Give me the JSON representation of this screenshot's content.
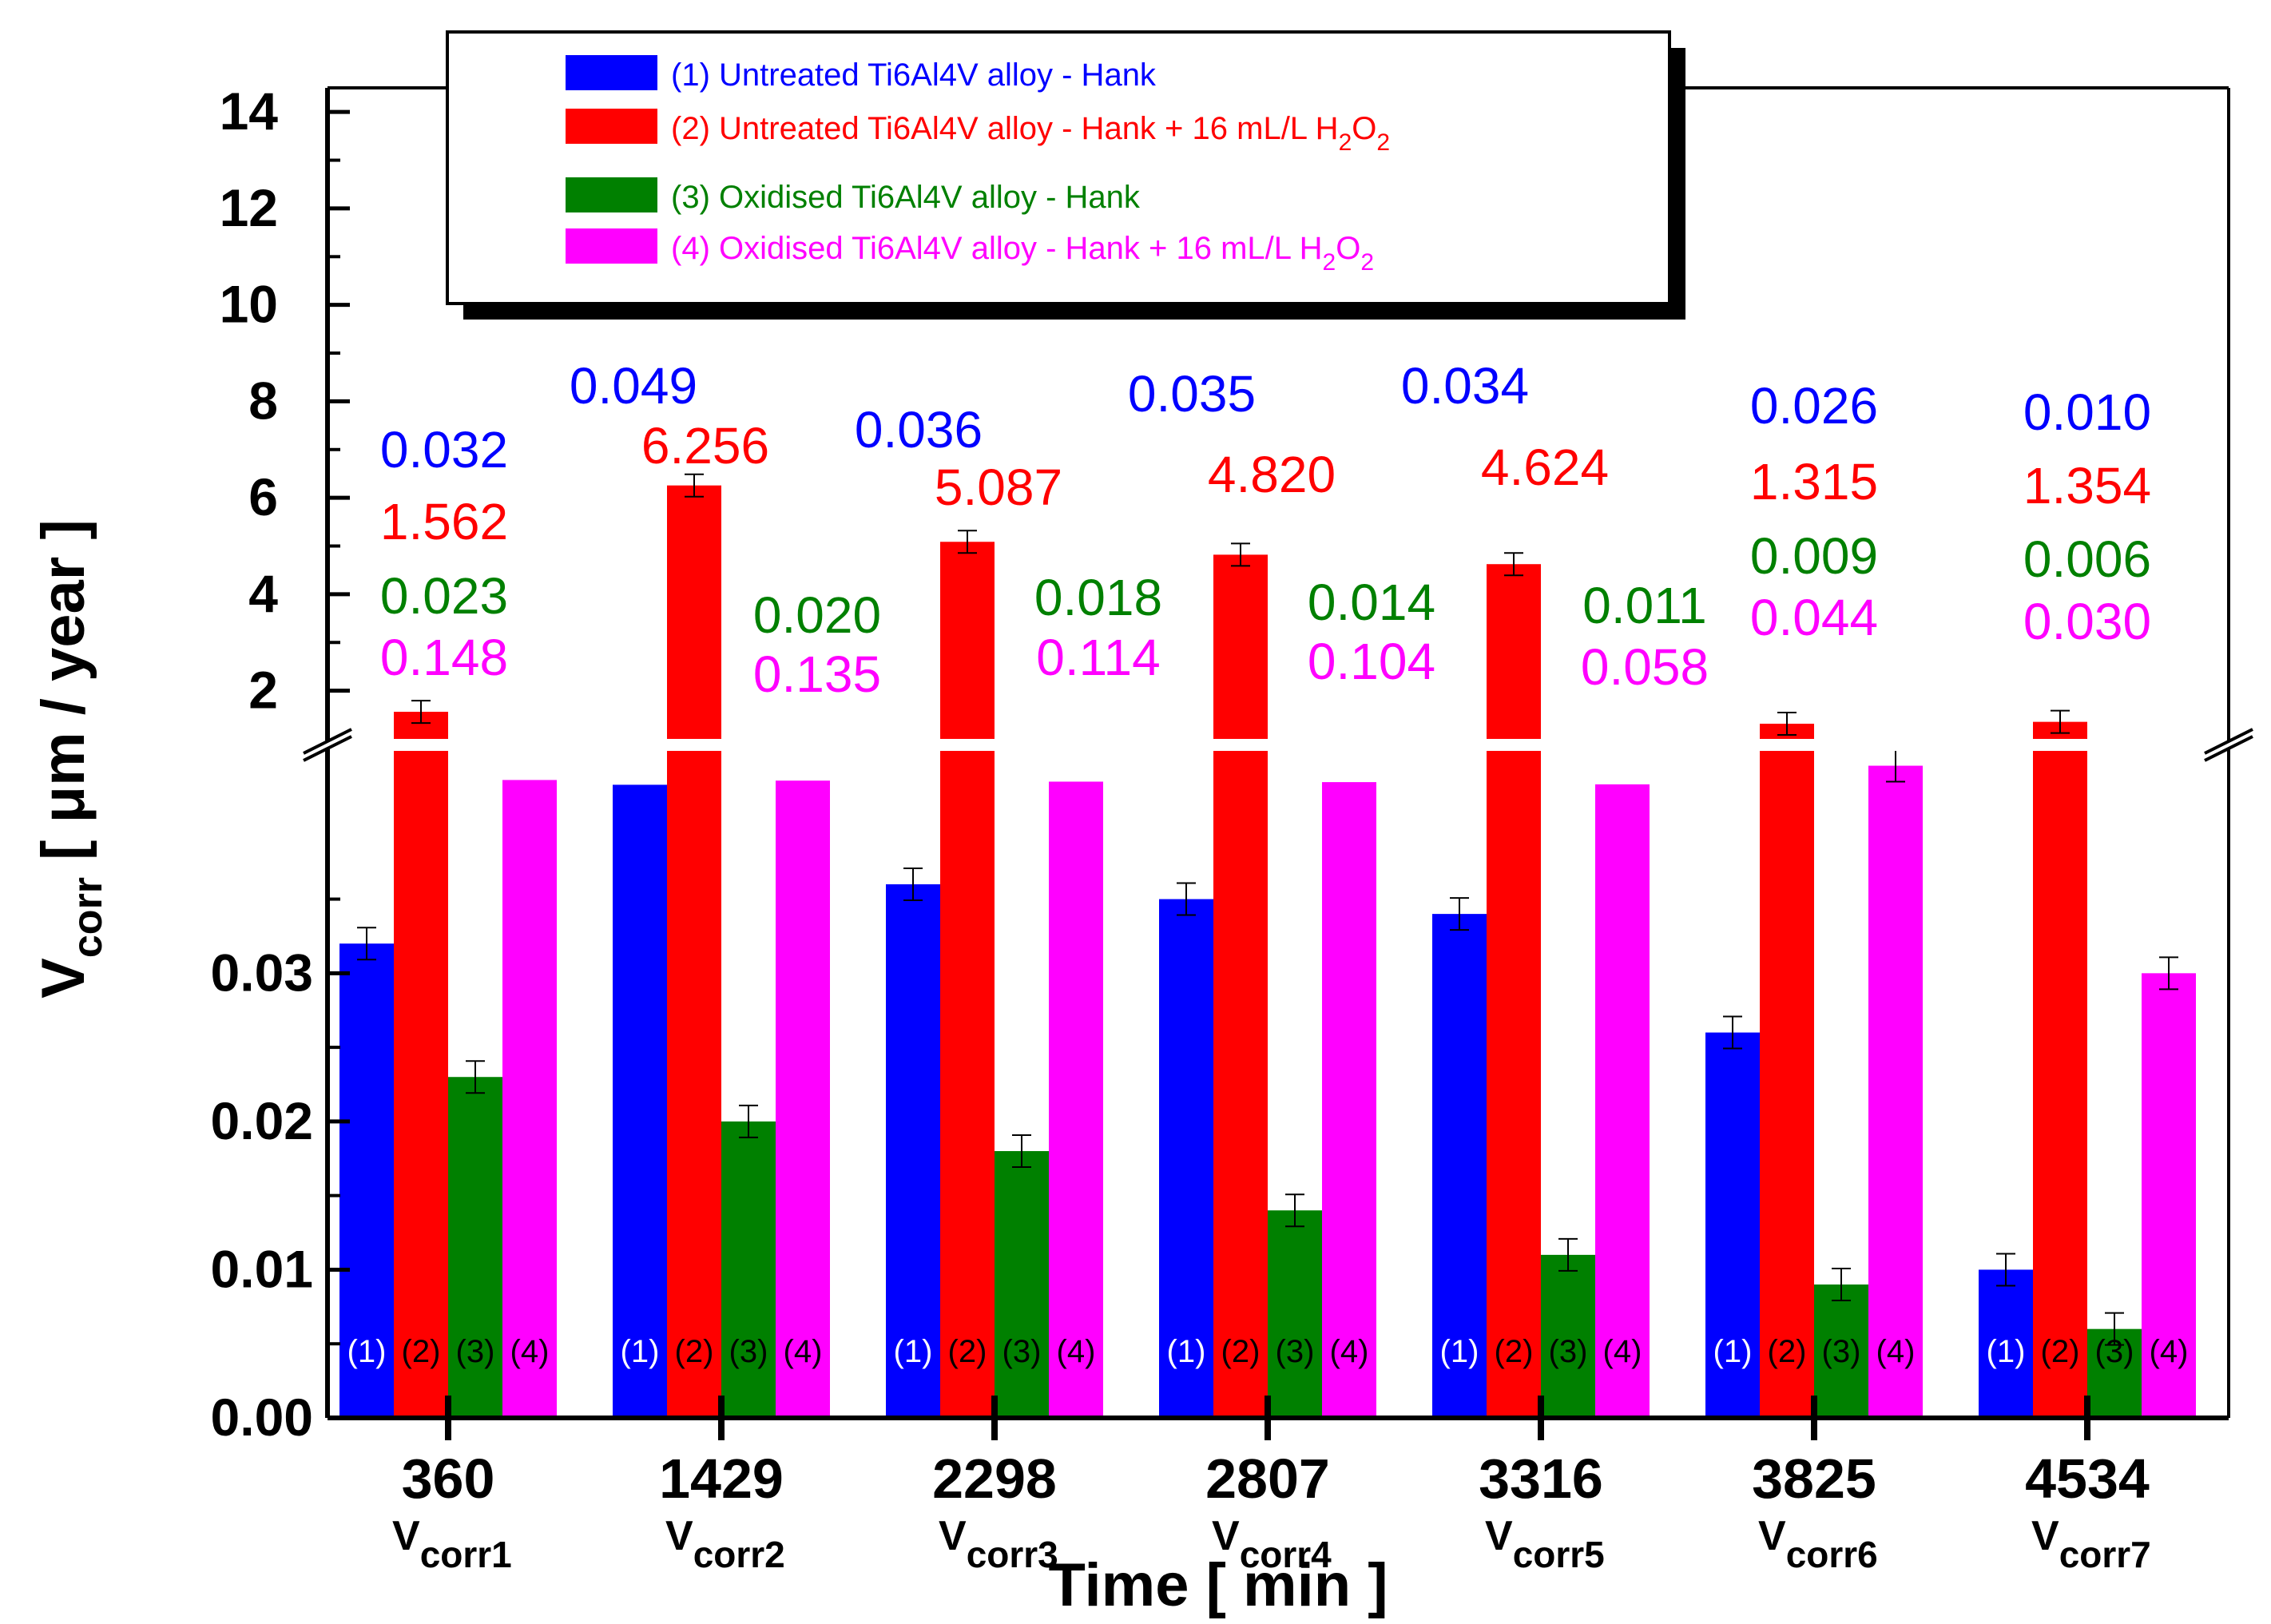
{
  "chart_data": {
    "type": "bar",
    "title": "",
    "xlabel": "Time [ min ]",
    "ylabel_main": "V",
    "ylabel_sub": "corr",
    "ylabel_unit": " [ μm / year ]",
    "categories": [
      "360",
      "1429",
      "2298",
      "2807",
      "3316",
      "3825",
      "4534"
    ],
    "sublabels": [
      "corr1",
      "corr2",
      "corr3",
      "corr4",
      "corr5",
      "corr6",
      "corr7"
    ],
    "sublabel_prefix": "V",
    "series": [
      {
        "name": "(1) Untreated Ti6Al4V alloy - Hank",
        "short": "(1)",
        "color": "#0000ff",
        "values": [
          0.032,
          0.049,
          0.036,
          0.035,
          0.034,
          0.026,
          0.01
        ],
        "labels": [
          "0.032",
          "0.049",
          "0.036",
          "0.035",
          "0.034",
          "0.026",
          "0.010"
        ]
      },
      {
        "name": "(2) Untreated Ti6Al4V alloy - Hank + 16 mL/L H2O2",
        "short": "(2)",
        "color": "#ff0000",
        "values": [
          1.562,
          6.256,
          5.087,
          4.82,
          4.624,
          1.315,
          1.354
        ],
        "labels": [
          "1.562",
          "6.256",
          "5.087",
          "4.820",
          "4.624",
          "1.315",
          "1.354"
        ]
      },
      {
        "name": "(3) Oxidised Ti6Al4V alloy - Hank",
        "short": "(3)",
        "color": "#008000",
        "values": [
          0.023,
          0.02,
          0.018,
          0.014,
          0.011,
          0.009,
          0.006
        ],
        "labels": [
          "0.023",
          "0.020",
          "0.018",
          "0.014",
          "0.011",
          "0.009",
          "0.006"
        ]
      },
      {
        "name": "(4) Oxidised Ti6Al4V alloy - Hank + 16 mL/L H2O2",
        "short": "(4)",
        "color": "#ff00ff",
        "values": [
          0.148,
          0.135,
          0.114,
          0.104,
          0.058,
          0.044,
          0.03
        ],
        "labels": [
          "0.148",
          "0.135",
          "0.114",
          "0.104",
          "0.058",
          "0.044",
          "0.030"
        ]
      }
    ],
    "legend": [
      {
        "main": "(1) Untreated Ti6Al4V alloy - Hank",
        "color": "#0000ff"
      },
      {
        "main": "(2) Untreated Ti6Al4V alloy - Hank + 16 mL/L H",
        "sub1": "2",
        "mid": "O",
        "sub2": "2",
        "color": "#ff0000"
      },
      {
        "main": "(3) Oxidised Ti6Al4V alloy - Hank",
        "color": "#008000"
      },
      {
        "main": "(4) Oxidised Ti6Al4V alloy - Hank + 16 mL/L H",
        "sub1": "2",
        "mid": "O",
        "sub2": "2",
        "color": "#ff00ff"
      }
    ],
    "y_lower": {
      "range": [
        0,
        0.045
      ],
      "ticks": [
        "0.00",
        "0.01",
        "0.02",
        "0.03"
      ]
    },
    "y_upper": {
      "range": [
        1.0,
        14.5
      ],
      "ticks": [
        "2",
        "4",
        "6",
        "8",
        "10",
        "12",
        "14"
      ]
    },
    "axis_break": true,
    "legend_position": "top"
  }
}
